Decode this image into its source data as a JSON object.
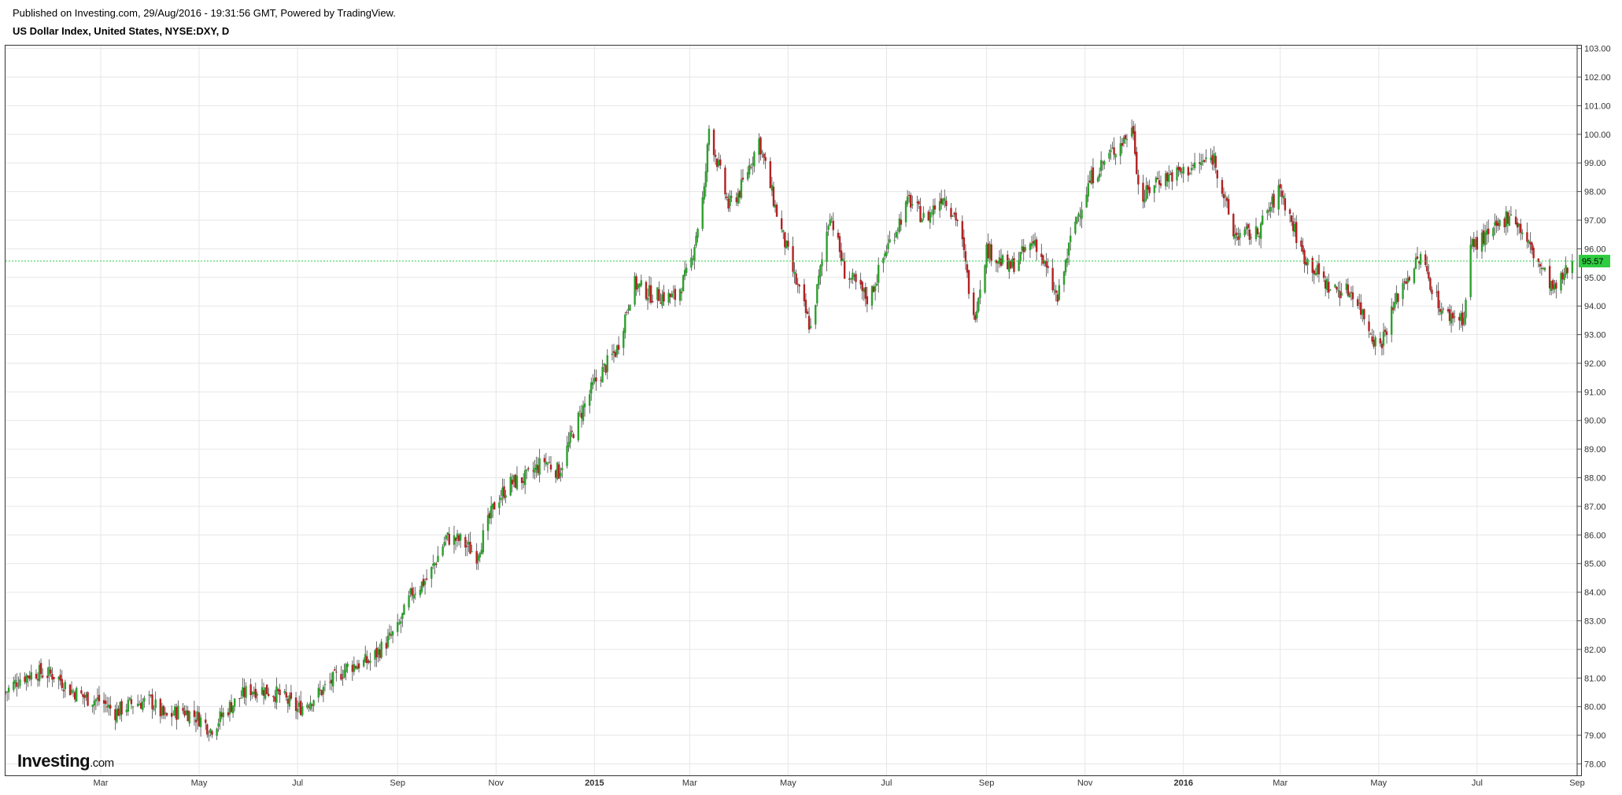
{
  "header": {
    "published": "Published on Investing.com, 29/Aug/2016 - 19:31:56 GMT, Powered by TradingView.",
    "title": "US Dollar Index, United States, NYSE:DXY, D"
  },
  "logo": {
    "main": "Investing",
    "suffix": ".com"
  },
  "colors": {
    "up": "#2ca02c",
    "down": "#b22222",
    "grid": "#e6e6e6",
    "last_price_line": "#2ecc40",
    "last_price_bg": "#2ecc40"
  },
  "chart_data": {
    "type": "candlestick",
    "title": "US Dollar Index, United States, NYSE:DXY, D",
    "ylim": [
      77.6,
      103.1
    ],
    "y_ticks": [
      "78.00",
      "79.00",
      "80.00",
      "81.00",
      "82.00",
      "83.00",
      "84.00",
      "85.00",
      "86.00",
      "87.00",
      "88.00",
      "89.00",
      "90.00",
      "91.00",
      "92.00",
      "93.00",
      "94.00",
      "95.00",
      "96.00",
      "97.00",
      "98.00",
      "99.00",
      "100.00",
      "101.00",
      "102.00",
      "103.00"
    ],
    "x_ticks": [
      {
        "label": "Mar",
        "date": "2014-03-01"
      },
      {
        "label": "May",
        "date": "2014-05-01"
      },
      {
        "label": "Jul",
        "date": "2014-07-01"
      },
      {
        "label": "Sep",
        "date": "2014-09-01"
      },
      {
        "label": "Nov",
        "date": "2014-11-01"
      },
      {
        "label": "2015",
        "date": "2015-01-01"
      },
      {
        "label": "Mar",
        "date": "2015-03-01"
      },
      {
        "label": "May",
        "date": "2015-05-01"
      },
      {
        "label": "Jul",
        "date": "2015-07-01"
      },
      {
        "label": "Sep",
        "date": "2015-09-01"
      },
      {
        "label": "Nov",
        "date": "2015-11-01"
      },
      {
        "label": "2016",
        "date": "2016-01-01"
      },
      {
        "label": "Mar",
        "date": "2016-03-01"
      },
      {
        "label": "May",
        "date": "2016-05-01"
      },
      {
        "label": "Jul",
        "date": "2016-07-01"
      },
      {
        "label": "Sep",
        "date": "2016-09-01"
      }
    ],
    "x_range": [
      "2014-01-01",
      "2016-09-01"
    ],
    "last_price": 95.57,
    "last_price_label": "95.57",
    "series_close": [
      {
        "date": "2014-01-01",
        "value": 80.5
      },
      {
        "date": "2014-01-10",
        "value": 81.0
      },
      {
        "date": "2014-01-20",
        "value": 81.2
      },
      {
        "date": "2014-02-01",
        "value": 81.1
      },
      {
        "date": "2014-02-10",
        "value": 80.6
      },
      {
        "date": "2014-02-20",
        "value": 80.3
      },
      {
        "date": "2014-03-01",
        "value": 80.2
      },
      {
        "date": "2014-03-10",
        "value": 79.8
      },
      {
        "date": "2014-03-20",
        "value": 80.1
      },
      {
        "date": "2014-04-01",
        "value": 80.2
      },
      {
        "date": "2014-04-10",
        "value": 79.6
      },
      {
        "date": "2014-04-20",
        "value": 79.9
      },
      {
        "date": "2014-05-01",
        "value": 79.6
      },
      {
        "date": "2014-05-08",
        "value": 79.2
      },
      {
        "date": "2014-05-20",
        "value": 80.0
      },
      {
        "date": "2014-06-01",
        "value": 80.6
      },
      {
        "date": "2014-06-10",
        "value": 80.6
      },
      {
        "date": "2014-06-20",
        "value": 80.4
      },
      {
        "date": "2014-07-01",
        "value": 79.9
      },
      {
        "date": "2014-07-15",
        "value": 80.5
      },
      {
        "date": "2014-08-01",
        "value": 81.4
      },
      {
        "date": "2014-08-15",
        "value": 81.6
      },
      {
        "date": "2014-09-01",
        "value": 82.7
      },
      {
        "date": "2014-09-10",
        "value": 84.0
      },
      {
        "date": "2014-09-20",
        "value": 84.5
      },
      {
        "date": "2014-10-01",
        "value": 85.9
      },
      {
        "date": "2014-10-10",
        "value": 85.8
      },
      {
        "date": "2014-10-20",
        "value": 85.3
      },
      {
        "date": "2014-11-01",
        "value": 87.2
      },
      {
        "date": "2014-11-10",
        "value": 87.8
      },
      {
        "date": "2014-11-20",
        "value": 88.0
      },
      {
        "date": "2014-12-01",
        "value": 88.6
      },
      {
        "date": "2014-12-10",
        "value": 88.2
      },
      {
        "date": "2014-12-20",
        "value": 89.8
      },
      {
        "date": "2015-01-01",
        "value": 91.3
      },
      {
        "date": "2015-01-15",
        "value": 92.5
      },
      {
        "date": "2015-01-25",
        "value": 94.8
      },
      {
        "date": "2015-02-05",
        "value": 94.4
      },
      {
        "date": "2015-02-20",
        "value": 94.3
      },
      {
        "date": "2015-03-01",
        "value": 95.3
      },
      {
        "date": "2015-03-10",
        "value": 98.0
      },
      {
        "date": "2015-03-13",
        "value": 100.2
      },
      {
        "date": "2015-03-25",
        "value": 97.5
      },
      {
        "date": "2015-04-01",
        "value": 98.0
      },
      {
        "date": "2015-04-13",
        "value": 99.8
      },
      {
        "date": "2015-04-25",
        "value": 97.0
      },
      {
        "date": "2015-05-05",
        "value": 95.0
      },
      {
        "date": "2015-05-15",
        "value": 93.2
      },
      {
        "date": "2015-05-27",
        "value": 97.3
      },
      {
        "date": "2015-06-05",
        "value": 95.2
      },
      {
        "date": "2015-06-20",
        "value": 94.2
      },
      {
        "date": "2015-07-01",
        "value": 96.0
      },
      {
        "date": "2015-07-15",
        "value": 97.7
      },
      {
        "date": "2015-07-25",
        "value": 97.0
      },
      {
        "date": "2015-08-05",
        "value": 97.9
      },
      {
        "date": "2015-08-15",
        "value": 96.9
      },
      {
        "date": "2015-08-24",
        "value": 93.5
      },
      {
        "date": "2015-09-01",
        "value": 96.0
      },
      {
        "date": "2015-09-15",
        "value": 95.3
      },
      {
        "date": "2015-10-01",
        "value": 96.3
      },
      {
        "date": "2015-10-15",
        "value": 94.2
      },
      {
        "date": "2015-10-25",
        "value": 96.8
      },
      {
        "date": "2015-11-05",
        "value": 98.5
      },
      {
        "date": "2015-11-15",
        "value": 99.2
      },
      {
        "date": "2015-12-01",
        "value": 100.2
      },
      {
        "date": "2015-12-05",
        "value": 97.6
      },
      {
        "date": "2015-12-15",
        "value": 98.4
      },
      {
        "date": "2016-01-01",
        "value": 98.7
      },
      {
        "date": "2016-01-20",
        "value": 99.2
      },
      {
        "date": "2016-02-01",
        "value": 96.5
      },
      {
        "date": "2016-02-15",
        "value": 96.5
      },
      {
        "date": "2016-03-01",
        "value": 98.1
      },
      {
        "date": "2016-03-15",
        "value": 95.8
      },
      {
        "date": "2016-04-01",
        "value": 94.6
      },
      {
        "date": "2016-04-15",
        "value": 94.5
      },
      {
        "date": "2016-05-01",
        "value": 92.5
      },
      {
        "date": "2016-05-15",
        "value": 94.7
      },
      {
        "date": "2016-05-27",
        "value": 95.7
      },
      {
        "date": "2016-06-10",
        "value": 93.7
      },
      {
        "date": "2016-06-23",
        "value": 93.6
      },
      {
        "date": "2016-06-27",
        "value": 96.1
      },
      {
        "date": "2016-07-10",
        "value": 96.5
      },
      {
        "date": "2016-07-22",
        "value": 97.3
      },
      {
        "date": "2016-08-05",
        "value": 95.8
      },
      {
        "date": "2016-08-18",
        "value": 94.5
      },
      {
        "date": "2016-08-29",
        "value": 95.57
      }
    ]
  }
}
